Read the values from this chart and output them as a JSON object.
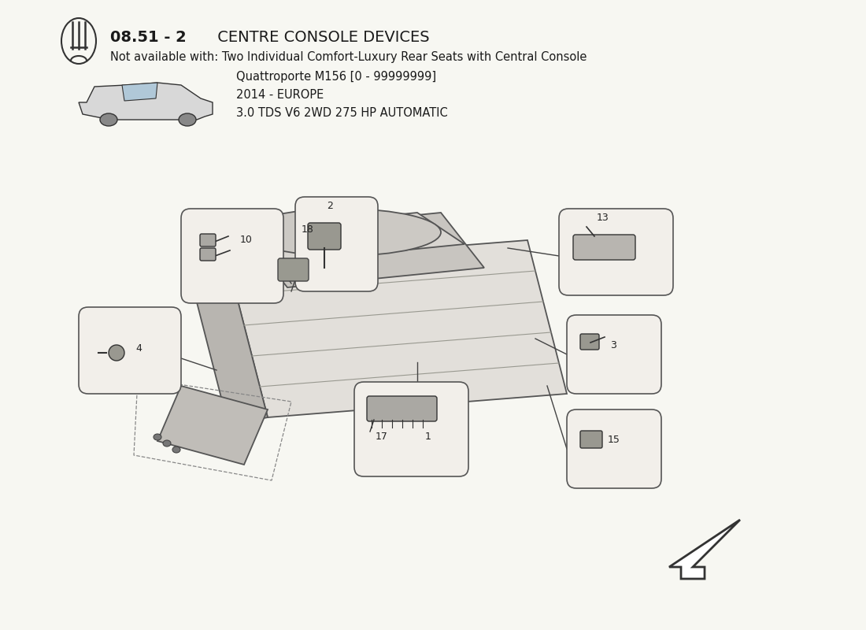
{
  "title_bold": "08.51 - 2",
  "title_rest": " CENTRE CONSOLE DEVICES",
  "subtitle1": "Not available with: Two Individual Comfort-Luxury Rear Seats with Central Console",
  "subtitle2": "Quattroporte M156 [0 - 99999999]",
  "subtitle3": "2014 - EUROPE",
  "subtitle4": "3.0 TDS V6 2WD 275 HP AUTOMATIC",
  "bg_color": "#f7f7f2",
  "text_color": "#1a1a1a",
  "box_edge_color": "#555555",
  "line_color": "#444444",
  "console_face": "#e0ddd8",
  "console_top": "#d0cdc8",
  "console_edge": "#555555"
}
